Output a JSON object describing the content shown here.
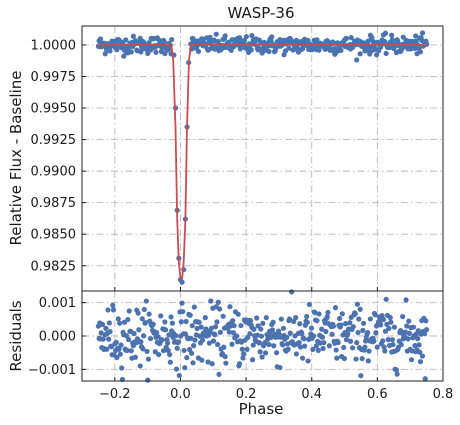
{
  "chart_data": [
    {
      "type": "scatter",
      "title": "WASP-36",
      "ylabel": "Relative Flux - Baseline",
      "xlim": [
        -0.3,
        0.8
      ],
      "ylim": [
        0.9805,
        1.0015
      ],
      "grid": true,
      "yticks": [
        "1.0000",
        "0.9975",
        "0.9950",
        "0.9925",
        "0.9900",
        "0.9875",
        "0.9850",
        "0.9825"
      ],
      "ytick_values": [
        1.0,
        0.9975,
        0.995,
        0.9925,
        0.99,
        0.9875,
        0.985,
        0.9825
      ],
      "xtick_values": [
        -0.2,
        0.0,
        0.2,
        0.4,
        0.6,
        0.8
      ],
      "series": [
        {
          "kind": "points",
          "color": "#4c72b0",
          "x_range": [
            -0.25,
            0.75
          ],
          "baseline_y": 1.0,
          "scatter_y": 0.0004,
          "points": [
            [
              -0.02,
              0.9992
            ],
            [
              -0.015,
              0.995
            ],
            [
              -0.01,
              0.9869
            ],
            [
              -0.005,
              0.9831
            ],
            [
              0.0,
              0.9814
            ],
            [
              0.005,
              0.9812
            ],
            [
              0.01,
              0.9822
            ],
            [
              0.015,
              0.9862
            ],
            [
              0.02,
              0.9935
            ],
            [
              0.025,
              0.9986
            ]
          ]
        },
        {
          "kind": "model",
          "color": "#c44e52",
          "points": [
            [
              -0.25,
              1.0
            ],
            [
              -0.028,
              1.0
            ],
            [
              -0.022,
              0.9988
            ],
            [
              -0.015,
              0.9935
            ],
            [
              -0.01,
              0.9862
            ],
            [
              -0.005,
              0.9828
            ],
            [
              0.0,
              0.9815
            ],
            [
              0.005,
              0.9815
            ],
            [
              0.01,
              0.9828
            ],
            [
              0.015,
              0.9862
            ],
            [
              0.02,
              0.9935
            ],
            [
              0.026,
              0.9988
            ],
            [
              0.032,
              1.0
            ],
            [
              0.75,
              1.0
            ]
          ]
        }
      ]
    },
    {
      "type": "scatter",
      "xlabel": "Phase",
      "ylabel": "Residuals",
      "xlim": [
        -0.3,
        0.8
      ],
      "ylim": [
        -0.00135,
        0.00135
      ],
      "grid": true,
      "yticks": [
        "0.001",
        "0.000",
        "−0.001"
      ],
      "ytick_values": [
        0.001,
        0.0,
        -0.001
      ],
      "xticks": [
        "−0.2",
        "0.0",
        "0.2",
        "0.4",
        "0.6",
        "0.8"
      ],
      "xtick_values": [
        -0.2,
        0.0,
        0.2,
        0.4,
        0.6,
        0.8
      ],
      "series": [
        {
          "kind": "points",
          "color": "#4c72b0",
          "x_range": [
            -0.25,
            0.75
          ],
          "baseline_y": 0.0,
          "scatter_y": 0.00045
        }
      ]
    }
  ]
}
